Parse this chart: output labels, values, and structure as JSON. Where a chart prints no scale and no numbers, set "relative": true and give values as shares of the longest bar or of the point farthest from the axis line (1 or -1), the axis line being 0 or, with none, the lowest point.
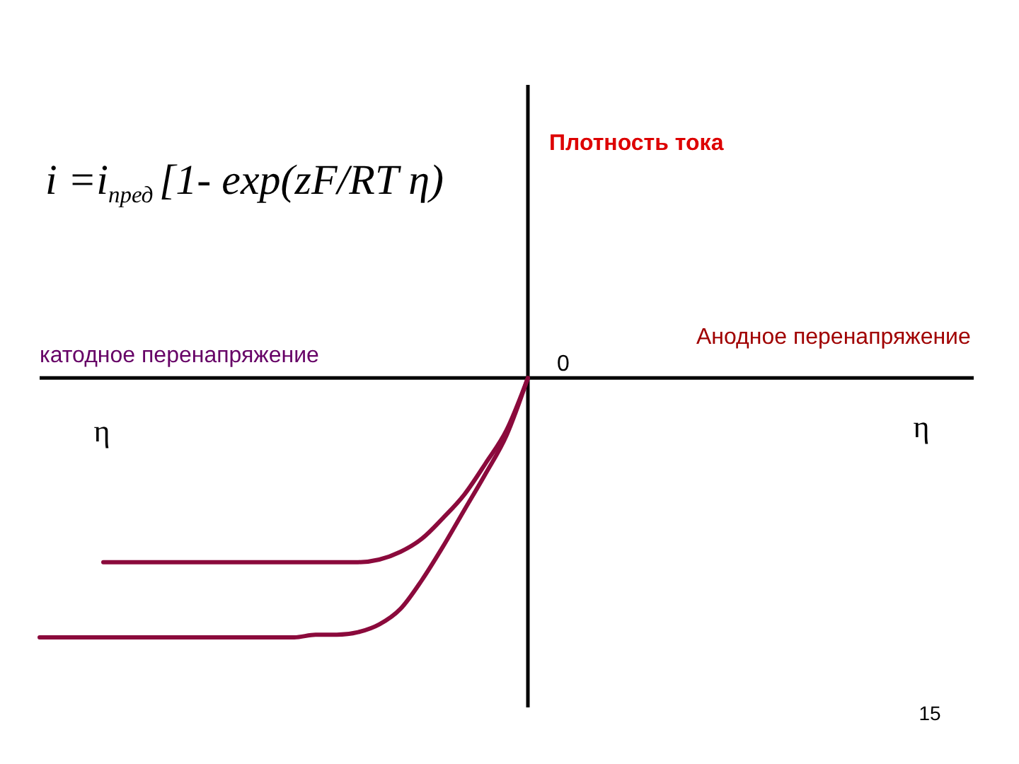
{
  "chart_data": {
    "type": "line",
    "relative": true,
    "annotations": [
      "Плотность тока",
      "i =i$_{пред}$[1- exp(zF/RT η)",
      "катодное перенапряжение",
      "Анодное перенапряжение",
      "η",
      "η",
      "0",
      "15"
    ],
    "categories": [
      null,
      null,
      null,
      null,
      null,
      null,
      null,
      null,
      null,
      null,
      null,
      null,
      null,
      null,
      null,
      null,
      null,
      null,
      null,
      null,
      null,
      null,
      null,
      null,
      null,
      null,
      null,
      null,
      null,
      null,
      null,
      null,
      null,
      null,
      null,
      null,
      null,
      null,
      null,
      null,
      null,
      null,
      null,
      null,
      null
    ],
    "series": [
      {
        "color": "#8b0a3c",
        "values": [
          null,
          null,
          null,
          -0.71,
          -0.71,
          -0.71,
          -0.71,
          -0.71,
          -0.71,
          -0.71,
          -0.71,
          -0.71,
          -0.71,
          -0.71,
          -0.71,
          -0.71,
          -0.7,
          -0.67,
          -0.62,
          -0.54,
          -0.45,
          -0.33,
          -0.2,
          0,
          null,
          null,
          null,
          null,
          null,
          null,
          null,
          null,
          null,
          null,
          null,
          null,
          null,
          null,
          null,
          null,
          null,
          null,
          null,
          null,
          null
        ]
      },
      {
        "color": "#8b0a3c",
        "values": [
          -1.0,
          -1.0,
          -1.0,
          -1.0,
          -1.0,
          -1.0,
          -1.0,
          -1.0,
          -1.0,
          -1.0,
          -1.0,
          -1.0,
          -1.0,
          -0.99,
          -0.99,
          -0.98,
          -0.95,
          -0.89,
          -0.78,
          -0.65,
          -0.51,
          -0.37,
          -0.22,
          0,
          null,
          null,
          null,
          null,
          null,
          null,
          null,
          null,
          null,
          null,
          null,
          null,
          null,
          null,
          null,
          null,
          null,
          null,
          null,
          null,
          null
        ]
      }
    ]
  }
}
